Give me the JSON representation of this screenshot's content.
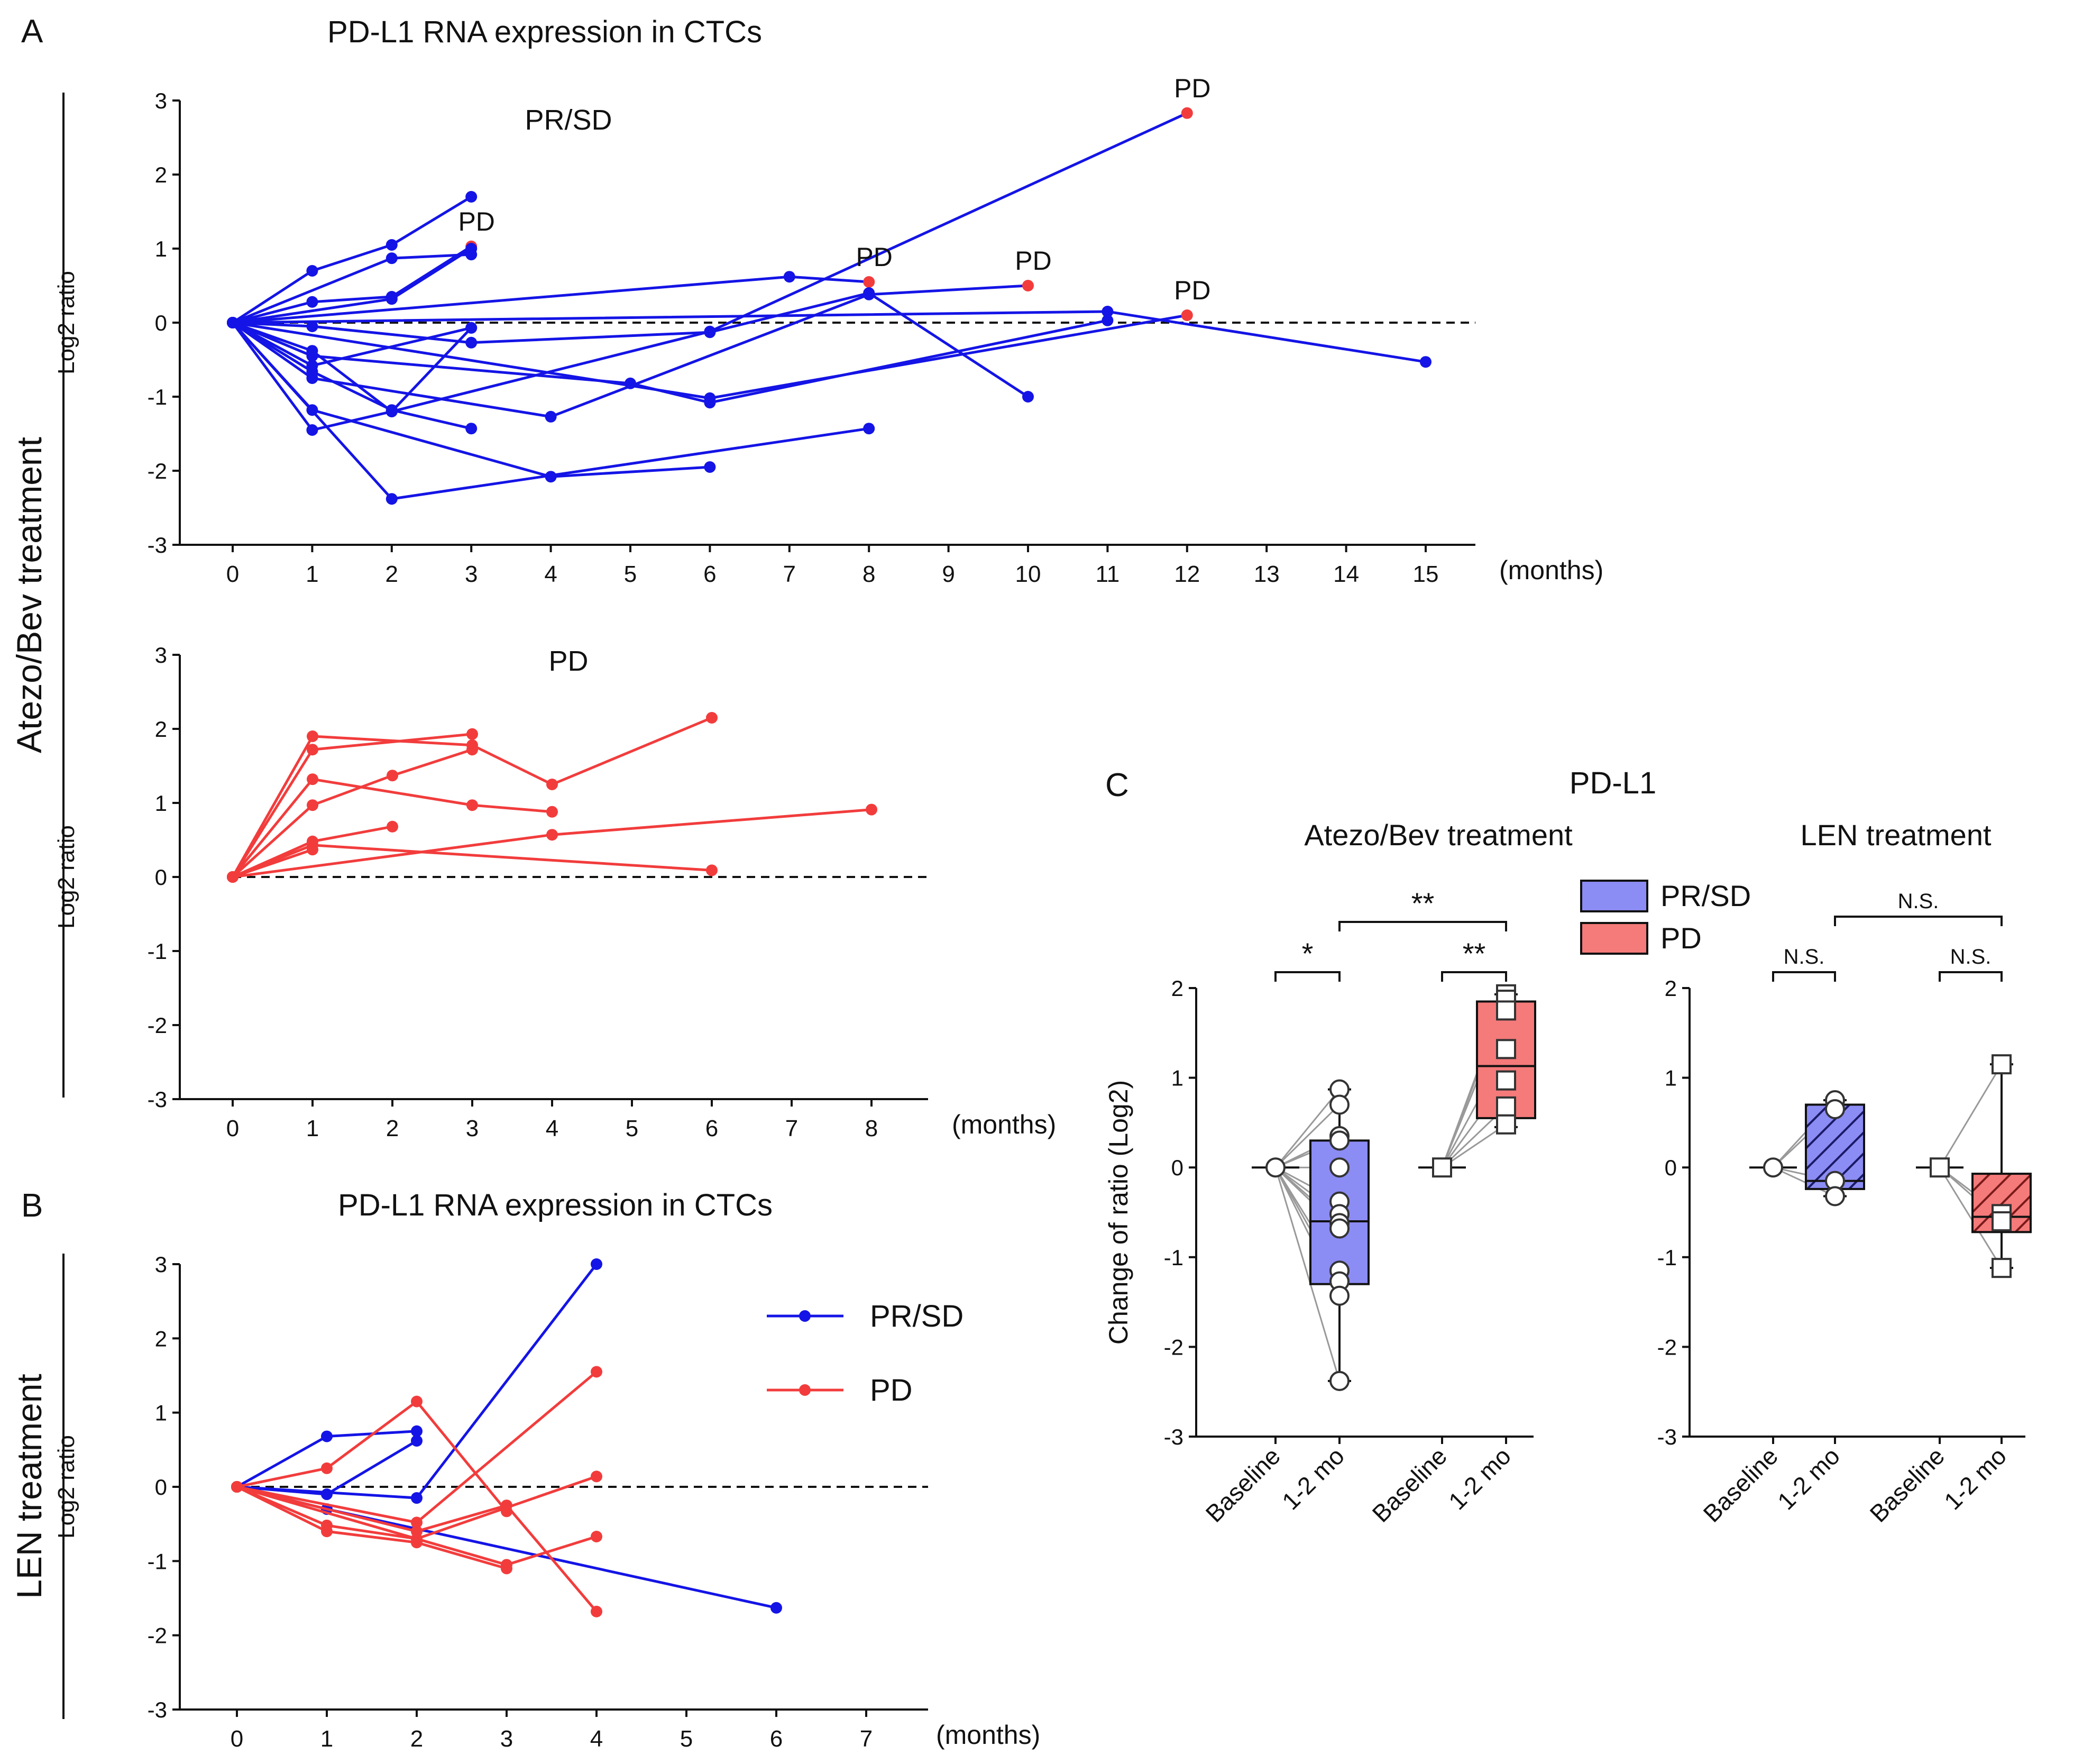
{
  "figure": {
    "panel_a_letter": "A",
    "panel_a_title": "PD-L1 RNA expression in CTCs",
    "panel_b_letter": "B",
    "panel_b_title": "PD-L1 RNA expression in CTCs",
    "panel_c_letter": "C",
    "panel_c_title": "PD-L1",
    "row_label_atezo": "Atezo/Bev treatment",
    "row_label_len": "LEN treatment",
    "months_label": "(months)",
    "colors": {
      "prsd": "#1414e6",
      "pd": "#f23c3c",
      "box_prsd": "#8c8cf5",
      "box_pd": "#f57a7a"
    }
  },
  "chart_data": [
    {
      "id": "A_top",
      "type": "line",
      "title": "PR/SD",
      "ylabel": "Log2 ratio",
      "xlabel": "(months)",
      "ylim": [
        -3,
        3
      ],
      "yticks": [
        -3,
        -2,
        -1,
        0,
        1,
        2,
        3
      ],
      "xticks": [
        0,
        1,
        2,
        3,
        4,
        5,
        6,
        7,
        8,
        9,
        10,
        11,
        12,
        13,
        14,
        15
      ],
      "reference_line": 0,
      "series": [
        {
          "name": "PR/SD",
          "x": [
            0,
            1,
            2,
            3
          ],
          "y": [
            0,
            0.7,
            1.05,
            1.7
          ]
        },
        {
          "name": "PR/SD",
          "x": [
            0,
            1,
            2,
            3
          ],
          "y": [
            0,
            0.28,
            0.35,
            1.03
          ],
          "pd_last": true
        },
        {
          "name": "PR/SD",
          "x": [
            0,
            2,
            3
          ],
          "y": [
            0,
            0.87,
            0.92
          ]
        },
        {
          "name": "PR/SD",
          "x": [
            0,
            2,
            3
          ],
          "y": [
            0,
            0.32,
            1.0
          ]
        },
        {
          "name": "PR/SD",
          "x": [
            0,
            7,
            8
          ],
          "y": [
            0,
            0.62,
            0.55
          ],
          "pd_last": true
        },
        {
          "name": "PR/SD",
          "x": [
            0,
            1,
            3,
            6,
            8,
            10
          ],
          "y": [
            0,
            -0.05,
            -0.27,
            -0.13,
            0.4,
            -1.0
          ]
        },
        {
          "name": "PR/SD",
          "x": [
            0,
            11,
            15
          ],
          "y": [
            0,
            0.15,
            -0.53
          ]
        },
        {
          "name": "PR/SD",
          "x": [
            0,
            1,
            2,
            6,
            12
          ],
          "y": [
            0,
            -0.38,
            -1.2,
            -0.12,
            2.83
          ],
          "pd_last": true
        },
        {
          "name": "PR/SD",
          "x": [
            0,
            1,
            5,
            6,
            11
          ],
          "y": [
            0,
            -0.45,
            -0.82,
            -1.08,
            0.03
          ]
        },
        {
          "name": "PR/SD",
          "x": [
            0,
            1,
            3
          ],
          "y": [
            0,
            -0.58,
            -0.07
          ]
        },
        {
          "name": "PR/SD",
          "x": [
            0,
            6,
            12
          ],
          "y": [
            0,
            -1.02,
            0.1
          ],
          "pd_last": true
        },
        {
          "name": "PR/SD",
          "x": [
            0,
            1,
            2,
            3
          ],
          "y": [
            0,
            -0.66,
            -1.18,
            -1.43
          ]
        },
        {
          "name": "PR/SD",
          "x": [
            0,
            1,
            2,
            3
          ],
          "y": [
            0,
            -1.45,
            -1.2,
            -0.07
          ]
        },
        {
          "name": "PR/SD",
          "x": [
            0,
            1,
            4,
            8,
            10
          ],
          "y": [
            0,
            -0.75,
            -1.27,
            0.38,
            0.5
          ],
          "pd_last": true
        },
        {
          "name": "PR/SD",
          "x": [
            0,
            1,
            4,
            6
          ],
          "y": [
            0,
            -1.18,
            -2.08,
            -1.95
          ]
        },
        {
          "name": "PR/SD",
          "x": [
            0,
            2,
            8
          ],
          "y": [
            0,
            -2.38,
            -1.43
          ]
        }
      ],
      "pd_labels": [
        {
          "text": "PD",
          "x": 3,
          "y": 1.03
        },
        {
          "text": "PD",
          "x": 8,
          "y": 0.55
        },
        {
          "text": "PD",
          "x": 10,
          "y": 0.5
        },
        {
          "text": "PD",
          "x": 12,
          "y": 2.83
        },
        {
          "text": "PD",
          "x": 12,
          "y": 0.1
        }
      ]
    },
    {
      "id": "A_bottom",
      "type": "line",
      "title": "PD",
      "ylabel": "Log2 ratio",
      "xlabel": "(months)",
      "ylim": [
        -3,
        3
      ],
      "yticks": [
        -3,
        -2,
        -1,
        0,
        1,
        2,
        3
      ],
      "xticks": [
        0,
        1,
        2,
        3,
        4,
        5,
        6,
        7,
        8
      ],
      "reference_line": 0,
      "series": [
        {
          "name": "PD",
          "x": [
            0,
            1,
            3,
            4,
            6
          ],
          "y": [
            0,
            1.9,
            1.78,
            1.25,
            2.15
          ]
        },
        {
          "name": "PD",
          "x": [
            0,
            1,
            3
          ],
          "y": [
            0,
            1.72,
            1.93
          ]
        },
        {
          "name": "PD",
          "x": [
            0,
            1,
            3,
            4
          ],
          "y": [
            0,
            1.32,
            0.97,
            0.88
          ]
        },
        {
          "name": "PD",
          "x": [
            0,
            1,
            2,
            3
          ],
          "y": [
            0,
            0.97,
            1.37,
            1.72
          ]
        },
        {
          "name": "PD",
          "x": [
            0,
            1,
            2
          ],
          "y": [
            0,
            0.48,
            0.68
          ]
        },
        {
          "name": "PD",
          "x": [
            0,
            1,
            6
          ],
          "y": [
            0,
            0.43,
            0.09
          ]
        },
        {
          "name": "PD",
          "x": [
            0,
            4,
            8
          ],
          "y": [
            0,
            0.57,
            0.91
          ]
        },
        {
          "name": "PD",
          "x": [
            0,
            1
          ],
          "y": [
            0,
            0.37
          ]
        }
      ]
    },
    {
      "id": "B",
      "type": "line",
      "ylabel": "Log2 ratio",
      "xlabel": "(months)",
      "ylim": [
        -3,
        3
      ],
      "yticks": [
        -3,
        -2,
        -1,
        0,
        1,
        2,
        3
      ],
      "xticks": [
        0,
        1,
        2,
        3,
        4,
        5,
        6,
        7
      ],
      "reference_line": 0,
      "legend": {
        "position": "top-right",
        "entries": [
          "PR/SD",
          "PD"
        ]
      },
      "series": [
        {
          "name": "PR/SD",
          "x": [
            0,
            1,
            2
          ],
          "y": [
            0,
            0.68,
            0.75
          ]
        },
        {
          "name": "PR/SD",
          "x": [
            0,
            1,
            2
          ],
          "y": [
            0,
            -0.1,
            0.62
          ]
        },
        {
          "name": "PR/SD",
          "x": [
            0,
            2,
            4
          ],
          "y": [
            0,
            -0.15,
            3.0
          ]
        },
        {
          "name": "PR/SD",
          "x": [
            0,
            1,
            6
          ],
          "y": [
            0,
            -0.3,
            -1.63
          ]
        },
        {
          "name": "PD",
          "x": [
            0,
            1,
            2,
            3
          ],
          "y": [
            0,
            0.25,
            1.15,
            -0.33
          ]
        },
        {
          "name": "PD",
          "x": [
            0,
            2,
            4
          ],
          "y": [
            0,
            -0.48,
            1.55
          ]
        },
        {
          "name": "PD",
          "x": [
            0,
            3,
            4
          ],
          "y": [
            0,
            -1.05,
            -0.67
          ]
        },
        {
          "name": "PD",
          "x": [
            0,
            1,
            2,
            4
          ],
          "y": [
            0,
            -0.52,
            -0.7,
            0.14
          ]
        },
        {
          "name": "PD",
          "x": [
            0,
            1,
            2,
            3
          ],
          "y": [
            0,
            -0.6,
            -0.75,
            -1.1
          ]
        },
        {
          "name": "PD",
          "x": [
            0,
            2,
            3,
            4
          ],
          "y": [
            0,
            -0.6,
            -0.25,
            -1.68
          ]
        }
      ]
    },
    {
      "id": "C_atezo",
      "type": "box",
      "title": "Atezo/Bev treatment",
      "ylabel": "Change of ratio (Log2)",
      "ylim": [
        -3,
        2
      ],
      "yticks": [
        -3,
        -2,
        -1,
        0,
        1,
        2
      ],
      "categories": [
        "Baseline",
        "1-2 mo",
        "Baseline",
        "1-2 mo"
      ],
      "groups": [
        {
          "name": "PR/SD",
          "marker": "circle",
          "baseline": 0,
          "box": {
            "q1": -1.3,
            "median": -0.6,
            "q3": 0.3,
            "min": -2.38,
            "max": 0.87,
            "hatched": false
          },
          "values": [
            0.87,
            0.7,
            0.35,
            0.3,
            0.0,
            -0.38,
            -0.52,
            -0.62,
            -0.68,
            -1.15,
            -1.27,
            -1.43,
            -2.38
          ]
        },
        {
          "name": "PD",
          "marker": "square",
          "baseline": 0,
          "box": {
            "q1": 0.55,
            "median": 1.13,
            "q3": 1.85,
            "min": 0.45,
            "max": 1.93,
            "hatched": false
          },
          "values": [
            1.93,
            1.87,
            1.75,
            1.32,
            0.97,
            0.68,
            0.48
          ]
        }
      ],
      "significance": [
        {
          "label": "*",
          "between": [
            0,
            1
          ]
        },
        {
          "label": "**",
          "between": [
            2,
            3
          ]
        },
        {
          "label": "**",
          "between": [
            1,
            3
          ]
        }
      ]
    },
    {
      "id": "C_len",
      "type": "box",
      "title": "LEN treatment",
      "ylim": [
        -3,
        2
      ],
      "yticks": [
        -3,
        -2,
        -1,
        0,
        1,
        2
      ],
      "categories": [
        "Baseline",
        "1-2 mo",
        "Baseline",
        "1-2 mo"
      ],
      "legend": {
        "position": "top-left",
        "entries": [
          "PR/SD",
          "PD"
        ]
      },
      "groups": [
        {
          "name": "PR/SD",
          "marker": "circle",
          "baseline": 0,
          "box": {
            "q1": -0.24,
            "median": -0.15,
            "q3": 0.7,
            "min": -0.32,
            "max": 0.75,
            "hatched": true
          },
          "values": [
            0.75,
            0.65,
            -0.15,
            -0.32
          ]
        },
        {
          "name": "PD",
          "marker": "square",
          "baseline": 0,
          "box": {
            "q1": -0.72,
            "median": -0.55,
            "q3": -0.07,
            "min": -1.12,
            "max": 1.15,
            "hatched": true
          },
          "values": [
            1.15,
            -0.52,
            -0.6,
            -1.12
          ]
        }
      ],
      "significance": [
        {
          "label": "N.S.",
          "between": [
            0,
            1
          ]
        },
        {
          "label": "N.S.",
          "between": [
            2,
            3
          ]
        },
        {
          "label": "N.S.",
          "between": [
            1,
            3
          ]
        }
      ]
    }
  ]
}
